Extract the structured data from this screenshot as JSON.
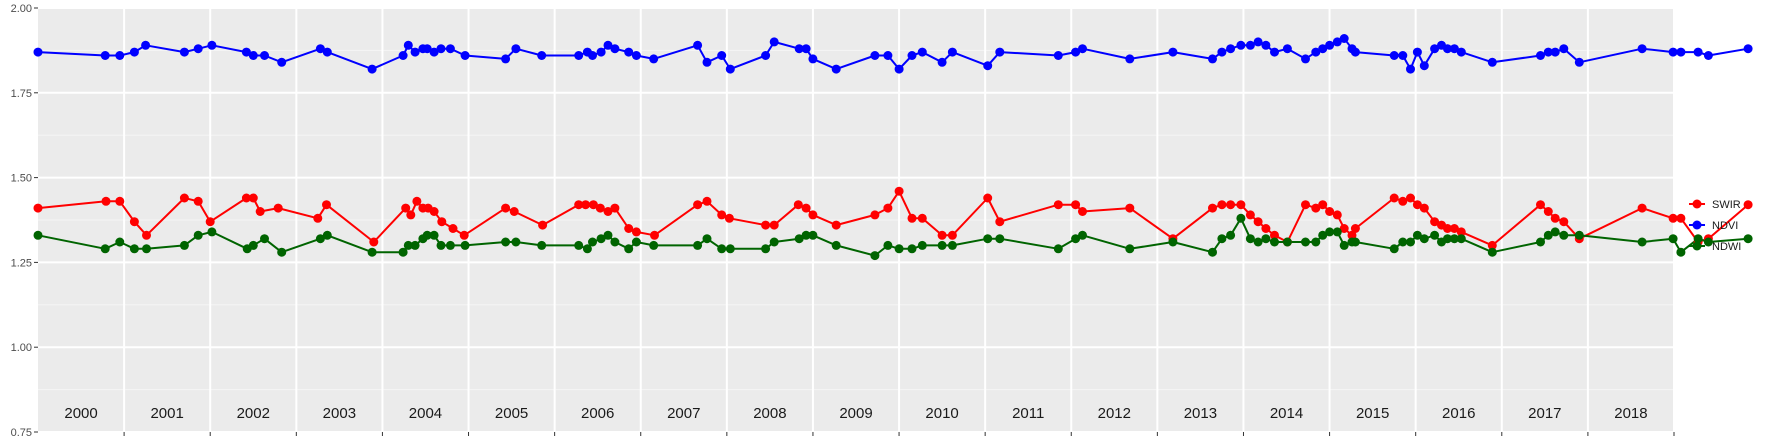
{
  "chart_data": {
    "type": "line",
    "title": "",
    "xlabel": "",
    "ylabel": "",
    "xlim": [
      2000.0,
      2019.0
    ],
    "ylim": [
      0.75,
      2.0
    ],
    "yticks": [
      "0.75",
      "1.00",
      "1.25",
      "1.50",
      "1.75",
      "2.00"
    ],
    "year_labels": [
      "2000",
      "2001",
      "2002",
      "2003",
      "2004",
      "2005",
      "2006",
      "2007",
      "2008",
      "2009",
      "2010",
      "2011",
      "2012",
      "2013",
      "2014",
      "2015",
      "2016",
      "2017",
      "2018"
    ],
    "background": "#ebebeb",
    "grid": true,
    "legend": {
      "position": "right",
      "entries": [
        "SWIR",
        "NDVI",
        "NDWI"
      ]
    },
    "series": [
      {
        "name": "SWIR",
        "color": "#ff0000",
        "points": [
          [
            2000.0,
            1.41
          ],
          [
            2000.79,
            1.43
          ],
          [
            2000.95,
            1.43
          ],
          [
            2001.12,
            1.37
          ],
          [
            2001.26,
            1.33
          ],
          [
            2001.7,
            1.44
          ],
          [
            2001.86,
            1.43
          ],
          [
            2002.0,
            1.37
          ],
          [
            2002.42,
            1.44
          ],
          [
            2002.5,
            1.44
          ],
          [
            2002.58,
            1.4
          ],
          [
            2002.79,
            1.41
          ],
          [
            2003.25,
            1.38
          ],
          [
            2003.35,
            1.42
          ],
          [
            2003.9,
            1.31
          ],
          [
            2004.27,
            1.41
          ],
          [
            2004.33,
            1.39
          ],
          [
            2004.4,
            1.43
          ],
          [
            2004.47,
            1.41
          ],
          [
            2004.53,
            1.41
          ],
          [
            2004.6,
            1.4
          ],
          [
            2004.69,
            1.37
          ],
          [
            2004.82,
            1.35
          ],
          [
            2004.95,
            1.33
          ],
          [
            2005.43,
            1.41
          ],
          [
            2005.53,
            1.4
          ],
          [
            2005.86,
            1.36
          ],
          [
            2006.28,
            1.42
          ],
          [
            2006.36,
            1.42
          ],
          [
            2006.45,
            1.42
          ],
          [
            2006.53,
            1.41
          ],
          [
            2006.62,
            1.4
          ],
          [
            2006.7,
            1.41
          ],
          [
            2006.86,
            1.35
          ],
          [
            2006.95,
            1.34
          ],
          [
            2007.16,
            1.33
          ],
          [
            2007.66,
            1.42
          ],
          [
            2007.77,
            1.43
          ],
          [
            2007.94,
            1.39
          ],
          [
            2008.03,
            1.38
          ],
          [
            2008.45,
            1.36
          ],
          [
            2008.55,
            1.36
          ],
          [
            2008.83,
            1.42
          ],
          [
            2008.92,
            1.41
          ],
          [
            2009.0,
            1.39
          ],
          [
            2009.27,
            1.36
          ],
          [
            2009.72,
            1.39
          ],
          [
            2009.87,
            1.41
          ],
          [
            2010.0,
            1.46
          ],
          [
            2010.15,
            1.38
          ],
          [
            2010.27,
            1.38
          ],
          [
            2010.5,
            1.33
          ],
          [
            2010.62,
            1.33
          ],
          [
            2011.03,
            1.44
          ],
          [
            2011.17,
            1.37
          ],
          [
            2011.85,
            1.42
          ],
          [
            2012.05,
            1.42
          ],
          [
            2012.13,
            1.4
          ],
          [
            2012.68,
            1.41
          ],
          [
            2013.18,
            1.32
          ],
          [
            2013.64,
            1.41
          ],
          [
            2013.75,
            1.42
          ],
          [
            2013.85,
            1.42
          ],
          [
            2013.97,
            1.42
          ],
          [
            2014.08,
            1.39
          ],
          [
            2014.17,
            1.37
          ],
          [
            2014.26,
            1.35
          ],
          [
            2014.36,
            1.33
          ],
          [
            2014.51,
            1.31
          ],
          [
            2014.72,
            1.42
          ],
          [
            2014.84,
            1.41
          ],
          [
            2014.92,
            1.42
          ],
          [
            2015.0,
            1.4
          ],
          [
            2015.09,
            1.39
          ],
          [
            2015.17,
            1.35
          ],
          [
            2015.26,
            1.33
          ],
          [
            2015.3,
            1.35
          ],
          [
            2015.75,
            1.44
          ],
          [
            2015.85,
            1.43
          ],
          [
            2015.94,
            1.44
          ],
          [
            2016.02,
            1.42
          ],
          [
            2016.1,
            1.41
          ],
          [
            2016.22,
            1.37
          ],
          [
            2016.3,
            1.36
          ],
          [
            2016.37,
            1.35
          ],
          [
            2016.45,
            1.35
          ],
          [
            2016.53,
            1.34
          ],
          [
            2016.89,
            1.3
          ],
          [
            2017.45,
            1.42
          ],
          [
            2017.54,
            1.4
          ],
          [
            2017.62,
            1.38
          ],
          [
            2017.72,
            1.37
          ],
          [
            2017.9,
            1.32
          ],
          [
            2018.63,
            1.41
          ],
          [
            2018.99,
            1.38
          ],
          [
            2019.08,
            1.38
          ],
          [
            2019.28,
            1.31
          ],
          [
            2019.4,
            1.32
          ],
          [
            2019.86,
            1.42
          ]
        ]
      },
      {
        "name": "NDVI",
        "color": "#0000ff",
        "points": [
          [
            2000.0,
            1.87
          ],
          [
            2000.78,
            1.86
          ],
          [
            2000.95,
            1.86
          ],
          [
            2001.12,
            1.87
          ],
          [
            2001.25,
            1.89
          ],
          [
            2001.7,
            1.87
          ],
          [
            2001.86,
            1.88
          ],
          [
            2002.02,
            1.89
          ],
          [
            2002.42,
            1.87
          ],
          [
            2002.5,
            1.86
          ],
          [
            2002.63,
            1.86
          ],
          [
            2002.83,
            1.84
          ],
          [
            2003.28,
            1.88
          ],
          [
            2003.36,
            1.87
          ],
          [
            2003.88,
            1.82
          ],
          [
            2004.24,
            1.86
          ],
          [
            2004.3,
            1.89
          ],
          [
            2004.38,
            1.87
          ],
          [
            2004.47,
            1.88
          ],
          [
            2004.52,
            1.88
          ],
          [
            2004.6,
            1.87
          ],
          [
            2004.68,
            1.88
          ],
          [
            2004.79,
            1.88
          ],
          [
            2004.96,
            1.86
          ],
          [
            2005.43,
            1.85
          ],
          [
            2005.55,
            1.88
          ],
          [
            2005.85,
            1.86
          ],
          [
            2006.28,
            1.86
          ],
          [
            2006.38,
            1.87
          ],
          [
            2006.44,
            1.86
          ],
          [
            2006.54,
            1.87
          ],
          [
            2006.62,
            1.89
          ],
          [
            2006.7,
            1.88
          ],
          [
            2006.86,
            1.87
          ],
          [
            2006.95,
            1.86
          ],
          [
            2007.15,
            1.85
          ],
          [
            2007.66,
            1.89
          ],
          [
            2007.77,
            1.84
          ],
          [
            2007.94,
            1.86
          ],
          [
            2008.04,
            1.82
          ],
          [
            2008.45,
            1.86
          ],
          [
            2008.55,
            1.9
          ],
          [
            2008.84,
            1.88
          ],
          [
            2008.92,
            1.88
          ],
          [
            2009.0,
            1.85
          ],
          [
            2009.27,
            1.82
          ],
          [
            2009.72,
            1.86
          ],
          [
            2009.87,
            1.86
          ],
          [
            2010.0,
            1.82
          ],
          [
            2010.15,
            1.86
          ],
          [
            2010.27,
            1.87
          ],
          [
            2010.5,
            1.84
          ],
          [
            2010.62,
            1.87
          ],
          [
            2011.03,
            1.83
          ],
          [
            2011.17,
            1.87
          ],
          [
            2011.85,
            1.86
          ],
          [
            2012.05,
            1.87
          ],
          [
            2012.13,
            1.88
          ],
          [
            2012.68,
            1.85
          ],
          [
            2013.18,
            1.87
          ],
          [
            2013.64,
            1.85
          ],
          [
            2013.75,
            1.87
          ],
          [
            2013.85,
            1.88
          ],
          [
            2013.97,
            1.89
          ],
          [
            2014.08,
            1.89
          ],
          [
            2014.17,
            1.9
          ],
          [
            2014.26,
            1.89
          ],
          [
            2014.36,
            1.87
          ],
          [
            2014.51,
            1.88
          ],
          [
            2014.72,
            1.85
          ],
          [
            2014.84,
            1.87
          ],
          [
            2014.92,
            1.88
          ],
          [
            2015.0,
            1.89
          ],
          [
            2015.09,
            1.9
          ],
          [
            2015.17,
            1.91
          ],
          [
            2015.26,
            1.88
          ],
          [
            2015.3,
            1.87
          ],
          [
            2015.75,
            1.86
          ],
          [
            2015.85,
            1.86
          ],
          [
            2015.94,
            1.82
          ],
          [
            2016.02,
            1.87
          ],
          [
            2016.1,
            1.83
          ],
          [
            2016.22,
            1.88
          ],
          [
            2016.3,
            1.89
          ],
          [
            2016.37,
            1.88
          ],
          [
            2016.45,
            1.88
          ],
          [
            2016.53,
            1.87
          ],
          [
            2016.89,
            1.84
          ],
          [
            2017.45,
            1.86
          ],
          [
            2017.54,
            1.87
          ],
          [
            2017.62,
            1.87
          ],
          [
            2017.72,
            1.88
          ],
          [
            2017.9,
            1.84
          ],
          [
            2018.63,
            1.88
          ],
          [
            2018.99,
            1.87
          ],
          [
            2019.08,
            1.87
          ],
          [
            2019.28,
            1.87
          ],
          [
            2019.4,
            1.86
          ],
          [
            2019.86,
            1.88
          ]
        ]
      },
      {
        "name": "NDWI",
        "color": "#006400",
        "points": [
          [
            2000.0,
            1.33
          ],
          [
            2000.78,
            1.29
          ],
          [
            2000.95,
            1.31
          ],
          [
            2001.12,
            1.29
          ],
          [
            2001.26,
            1.29
          ],
          [
            2001.7,
            1.3
          ],
          [
            2001.86,
            1.33
          ],
          [
            2002.02,
            1.34
          ],
          [
            2002.43,
            1.29
          ],
          [
            2002.5,
            1.3
          ],
          [
            2002.63,
            1.32
          ],
          [
            2002.83,
            1.28
          ],
          [
            2003.28,
            1.32
          ],
          [
            2003.36,
            1.33
          ],
          [
            2003.88,
            1.28
          ],
          [
            2004.24,
            1.28
          ],
          [
            2004.3,
            1.3
          ],
          [
            2004.38,
            1.3
          ],
          [
            2004.47,
            1.32
          ],
          [
            2004.52,
            1.33
          ],
          [
            2004.6,
            1.33
          ],
          [
            2004.68,
            1.3
          ],
          [
            2004.79,
            1.3
          ],
          [
            2004.96,
            1.3
          ],
          [
            2005.43,
            1.31
          ],
          [
            2005.55,
            1.31
          ],
          [
            2005.85,
            1.3
          ],
          [
            2006.28,
            1.3
          ],
          [
            2006.38,
            1.29
          ],
          [
            2006.44,
            1.31
          ],
          [
            2006.54,
            1.32
          ],
          [
            2006.62,
            1.33
          ],
          [
            2006.7,
            1.31
          ],
          [
            2006.86,
            1.29
          ],
          [
            2006.95,
            1.31
          ],
          [
            2007.15,
            1.3
          ],
          [
            2007.66,
            1.3
          ],
          [
            2007.77,
            1.32
          ],
          [
            2007.94,
            1.29
          ],
          [
            2008.04,
            1.29
          ],
          [
            2008.45,
            1.29
          ],
          [
            2008.55,
            1.31
          ],
          [
            2008.84,
            1.32
          ],
          [
            2008.92,
            1.33
          ],
          [
            2009.0,
            1.33
          ],
          [
            2009.27,
            1.3
          ],
          [
            2009.72,
            1.27
          ],
          [
            2009.87,
            1.3
          ],
          [
            2010.0,
            1.29
          ],
          [
            2010.15,
            1.29
          ],
          [
            2010.27,
            1.3
          ],
          [
            2010.5,
            1.3
          ],
          [
            2010.62,
            1.3
          ],
          [
            2011.03,
            1.32
          ],
          [
            2011.17,
            1.32
          ],
          [
            2011.85,
            1.29
          ],
          [
            2012.05,
            1.32
          ],
          [
            2012.13,
            1.33
          ],
          [
            2012.68,
            1.29
          ],
          [
            2013.18,
            1.31
          ],
          [
            2013.64,
            1.28
          ],
          [
            2013.75,
            1.32
          ],
          [
            2013.85,
            1.33
          ],
          [
            2013.97,
            1.38
          ],
          [
            2014.08,
            1.32
          ],
          [
            2014.17,
            1.31
          ],
          [
            2014.26,
            1.32
          ],
          [
            2014.36,
            1.31
          ],
          [
            2014.51,
            1.31
          ],
          [
            2014.72,
            1.31
          ],
          [
            2014.84,
            1.31
          ],
          [
            2014.92,
            1.33
          ],
          [
            2015.0,
            1.34
          ],
          [
            2015.09,
            1.34
          ],
          [
            2015.17,
            1.3
          ],
          [
            2015.26,
            1.31
          ],
          [
            2015.3,
            1.31
          ],
          [
            2015.75,
            1.29
          ],
          [
            2015.85,
            1.31
          ],
          [
            2015.94,
            1.31
          ],
          [
            2016.02,
            1.33
          ],
          [
            2016.1,
            1.32
          ],
          [
            2016.22,
            1.33
          ],
          [
            2016.3,
            1.31
          ],
          [
            2016.37,
            1.32
          ],
          [
            2016.45,
            1.32
          ],
          [
            2016.53,
            1.32
          ],
          [
            2016.89,
            1.28
          ],
          [
            2017.45,
            1.31
          ],
          [
            2017.54,
            1.33
          ],
          [
            2017.62,
            1.34
          ],
          [
            2017.72,
            1.33
          ],
          [
            2017.9,
            1.33
          ],
          [
            2018.63,
            1.31
          ],
          [
            2018.99,
            1.32
          ],
          [
            2019.08,
            1.28
          ],
          [
            2019.28,
            1.32
          ],
          [
            2019.4,
            1.31
          ],
          [
            2019.86,
            1.32
          ]
        ]
      }
    ]
  }
}
